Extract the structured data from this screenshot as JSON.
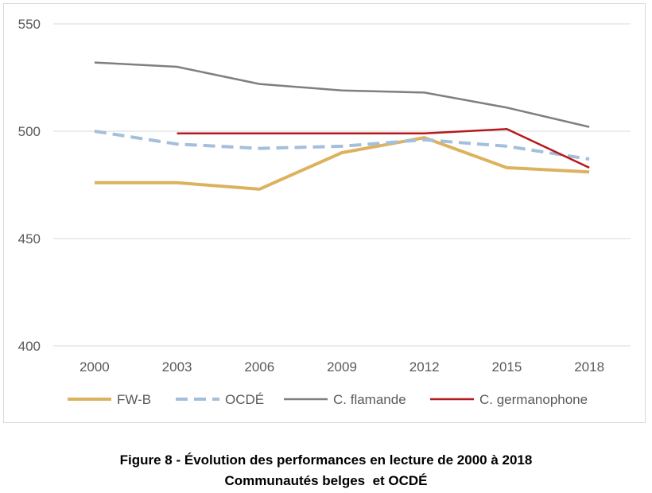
{
  "chart_data": {
    "type": "line",
    "categories": [
      "2000",
      "2003",
      "2006",
      "2009",
      "2012",
      "2015",
      "2018"
    ],
    "ylim": [
      400,
      550
    ],
    "yticks": [
      400,
      450,
      500,
      550
    ],
    "grid": true,
    "legend_position": "bottom",
    "series": [
      {
        "name": "FW-B",
        "color": "#dcb25f",
        "style": "solid",
        "width": 4,
        "values": [
          476,
          476,
          473,
          490,
          497,
          483,
          481
        ]
      },
      {
        "name": "OCDÉ",
        "color": "#a4bfdb",
        "style": "dashed",
        "width": 4,
        "values": [
          500,
          494,
          492,
          493,
          496,
          493,
          487
        ]
      },
      {
        "name": "C. flamande",
        "color": "#7f7f7f",
        "style": "solid",
        "width": 2.5,
        "values": [
          532,
          530,
          522,
          519,
          518,
          511,
          502
        ]
      },
      {
        "name": "C. germanophone",
        "color": "#b5191e",
        "style": "solid",
        "width": 2.5,
        "values": [
          null,
          499,
          499,
          499,
          499,
          501,
          483
        ]
      }
    ]
  },
  "caption": {
    "line1": "Figure 8 - Évolution des performances en lecture de 2000 à 2018",
    "line2": "Communautés belges  et OCDÉ"
  }
}
